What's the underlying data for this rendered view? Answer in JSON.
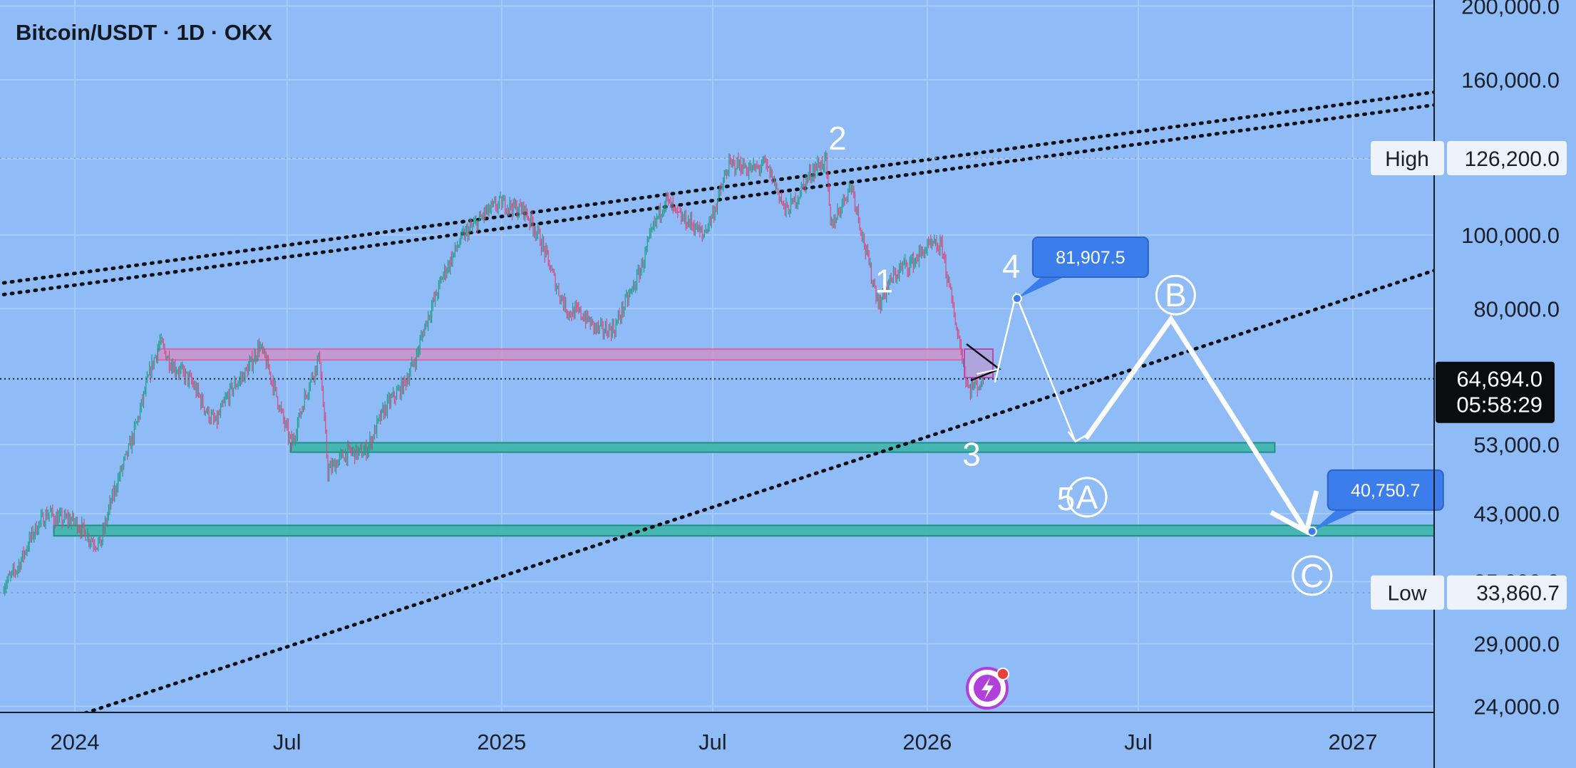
{
  "header": {
    "title": "Bitcoin/USDT · 1D · OKX"
  },
  "colors": {
    "background": "#8fbbf7",
    "grid": "#a7cbf8",
    "up_candle": "#1f9e88",
    "down_candle": "#e0457b",
    "resistance_zone": "#c994c9",
    "support_zone": "#3fb5a8",
    "callout": "#3b7dea",
    "wave_path": "#ffffff"
  },
  "chart_data": {
    "type": "candlestick",
    "symbol": "Bitcoin/USDT",
    "interval": "1D",
    "exchange": "OKX",
    "y_scale": "log",
    "ylim": [
      24000,
      200000
    ],
    "y_ticks": [
      "200,000.0",
      "160,000.0",
      "126,000.0",
      "100,000.0",
      "80,000.0",
      "64,694.0",
      "53,000.0",
      "43,000.0",
      "35,000.0",
      "29,000.0",
      "24,000.0"
    ],
    "y_tick_values": [
      200000,
      160000,
      126000,
      100000,
      80000,
      64694,
      53000,
      43000,
      35000,
      29000,
      24000
    ],
    "x_ticks": [
      "2024",
      "Jul",
      "2025",
      "Jul",
      "2026",
      "Jul",
      "2027"
    ],
    "x_tick_dates": [
      "2024-01-01",
      "2024-07-01",
      "2025-01-01",
      "2025-07-01",
      "2026-01-01",
      "2026-07-01",
      "2027-01-01"
    ],
    "price_path": [
      {
        "date": "2023-11-01",
        "price": 34500
      },
      {
        "date": "2023-12-10",
        "price": 43500
      },
      {
        "date": "2024-01-23",
        "price": 39500
      },
      {
        "date": "2024-02-15",
        "price": 52000
      },
      {
        "date": "2024-03-14",
        "price": 72000
      },
      {
        "date": "2024-05-01",
        "price": 57000
      },
      {
        "date": "2024-06-07",
        "price": 71500
      },
      {
        "date": "2024-07-05",
        "price": 53500
      },
      {
        "date": "2024-07-29",
        "price": 69500
      },
      {
        "date": "2024-08-05",
        "price": 49500
      },
      {
        "date": "2024-09-06",
        "price": 52500
      },
      {
        "date": "2024-10-20",
        "price": 69000
      },
      {
        "date": "2024-11-12",
        "price": 90000
      },
      {
        "date": "2024-12-17",
        "price": 108000
      },
      {
        "date": "2025-01-20",
        "price": 109500
      },
      {
        "date": "2025-02-28",
        "price": 79000
      },
      {
        "date": "2025-04-08",
        "price": 74500
      },
      {
        "date": "2025-05-22",
        "price": 111500
      },
      {
        "date": "2025-06-22",
        "price": 99000
      },
      {
        "date": "2025-07-14",
        "price": 122000
      },
      {
        "date": "2025-08-14",
        "price": 124000
      },
      {
        "date": "2025-09-01",
        "price": 108000
      },
      {
        "date": "2025-10-06",
        "price": 126200
      },
      {
        "date": "2025-10-10",
        "price": 104000
      },
      {
        "date": "2025-10-28",
        "price": 115000
      },
      {
        "date": "2025-11-21",
        "price": 81000
      },
      {
        "date": "2025-12-12",
        "price": 92000
      },
      {
        "date": "2026-01-14",
        "price": 97000
      },
      {
        "date": "2026-02-05",
        "price": 62000
      },
      {
        "date": "2026-02-18",
        "price": 64694
      }
    ],
    "current_price": "64,694.0",
    "countdown": "05:58:29",
    "high": {
      "label": "High",
      "value": "126,200.0",
      "price": 126200
    },
    "low": {
      "label": "Low",
      "value": "33,860.7",
      "price": 33860.7
    },
    "zones": [
      {
        "name": "resistance",
        "from_date": "2024-03-12",
        "to_date": "2026-01-31",
        "low": 68500,
        "high": 70800
      },
      {
        "name": "support-1",
        "from_date": "2024-07-04",
        "to_date": "2026-10-26",
        "low": 51800,
        "high": 53300
      },
      {
        "name": "support-2",
        "from_date": "2023-12-14",
        "to_date": "2027-04-20",
        "low": 40200,
        "high": 41500
      }
    ],
    "trendlines": [
      {
        "name": "upper-channel-1",
        "from": {
          "date": "2023-11-01",
          "price": 86500
        },
        "to": {
          "date": "2027-04-20",
          "price": 157000
        }
      },
      {
        "name": "upper-channel-2",
        "from": {
          "date": "2023-11-01",
          "price": 83500
        },
        "to": {
          "date": "2027-04-20",
          "price": 151000
        }
      },
      {
        "name": "rising-support",
        "from": {
          "date": "2023-12-22",
          "price": 23000
        },
        "to": {
          "date": "2027-04-20",
          "price": 94000
        }
      }
    ],
    "projection_thin": [
      {
        "date": "2026-02-28",
        "price": 64000
      },
      {
        "date": "2026-03-18",
        "price": 83500
      },
      {
        "date": "2026-05-08",
        "price": 53500
      }
    ],
    "projection_thick": [
      {
        "date": "2026-05-17",
        "price": 54000
      },
      {
        "date": "2026-07-29",
        "price": 77500
      },
      {
        "date": "2026-11-21",
        "price": 41000
      }
    ],
    "wave_labels": [
      {
        "text": "1",
        "date": "2025-11-25",
        "price": 87000,
        "circled": false
      },
      {
        "text": "2",
        "date": "2025-10-16",
        "price": 134000,
        "circled": false
      },
      {
        "text": "3",
        "date": "2026-02-08",
        "price": 51500,
        "circled": false
      },
      {
        "text": "4",
        "date": "2026-03-14",
        "price": 91000,
        "circled": false
      },
      {
        "text": "5",
        "date": "2026-04-30",
        "price": 45000,
        "circled": false
      },
      {
        "text": "A",
        "date": "2026-05-18",
        "price": 45000,
        "circled": true
      },
      {
        "text": "B",
        "date": "2026-08-02",
        "price": 83000,
        "circled": true
      },
      {
        "text": "C",
        "date": "2026-11-27",
        "price": 35500,
        "circled": true
      }
    ],
    "callouts": [
      {
        "text": "81,907.5",
        "date": "2026-03-19",
        "price": 82500
      },
      {
        "text": "40,750.7",
        "date": "2026-11-27",
        "price": 40750.7
      }
    ]
  }
}
